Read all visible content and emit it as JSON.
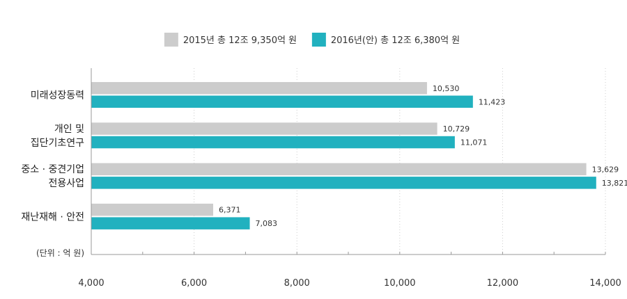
{
  "chart_data": {
    "type": "bar",
    "orientation": "horizontal",
    "categories": [
      [
        "미래성장동력"
      ],
      [
        "개인 및",
        "집단기초연구"
      ],
      [
        "중소 · 중견기업",
        "전용사업"
      ],
      [
        "재난재해 · 안전"
      ]
    ],
    "series": [
      {
        "name": "2015년 총 12조 9,350억 원",
        "color": "#cccccc",
        "values": [
          10530,
          10729,
          13629,
          6371
        ],
        "labels": [
          "10,530",
          "10,729",
          "13,629",
          "6,371"
        ]
      },
      {
        "name": "2016년(안) 총 12조 6,380억 원",
        "color": "#21b1bf",
        "values": [
          11423,
          11071,
          13821,
          7083
        ],
        "labels": [
          "11,423",
          "11,071",
          "13,821",
          "7,083"
        ]
      }
    ],
    "xlim": [
      4000,
      14000
    ],
    "xticks": [
      4000,
      6000,
      8000,
      10000,
      12000,
      14000
    ],
    "xtick_labels": [
      "4,000",
      "6,000",
      "8,000",
      "10,000",
      "12,000",
      "14,000"
    ],
    "unit_label": "(단위 : 억 원)",
    "legend_position": "top-center",
    "grid": "vertical dotted"
  }
}
